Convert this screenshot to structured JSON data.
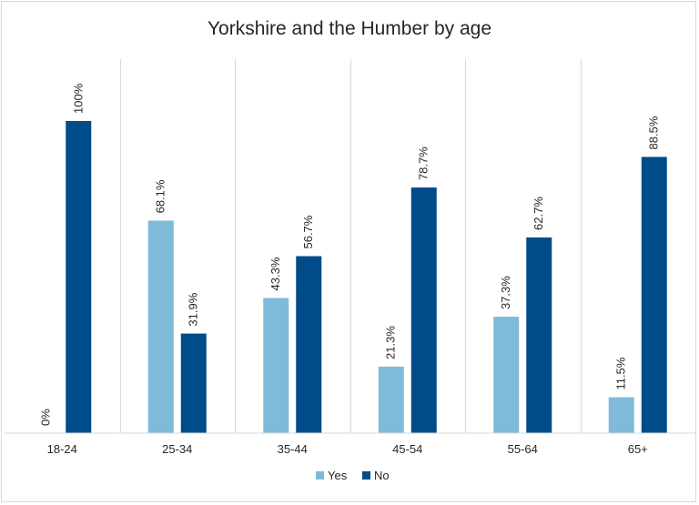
{
  "chart_data": {
    "type": "bar",
    "title": "Yorkshire and the Humber by age",
    "xlabel": "",
    "ylabel": "",
    "ylim": [
      0,
      100
    ],
    "grid": "vertical category separators",
    "legend_position": "bottom",
    "categories": [
      "18-24",
      "25-34",
      "35-44",
      "45-54",
      "55-64",
      "65+"
    ],
    "series": [
      {
        "name": "Yes",
        "color": "#7fbad9",
        "values": [
          0,
          68.1,
          43.3,
          21.3,
          37.3,
          11.5
        ],
        "labels": [
          "0%",
          "68.1%",
          "43.3%",
          "21.3%",
          "37.3%",
          "11.5%"
        ]
      },
      {
        "name": "No",
        "color": "#004c88",
        "values": [
          100,
          31.9,
          56.7,
          78.7,
          62.7,
          88.5
        ],
        "labels": [
          "100%",
          "31.9%",
          "56.7%",
          "78.7%",
          "62.7%",
          "88.5%"
        ]
      }
    ]
  }
}
